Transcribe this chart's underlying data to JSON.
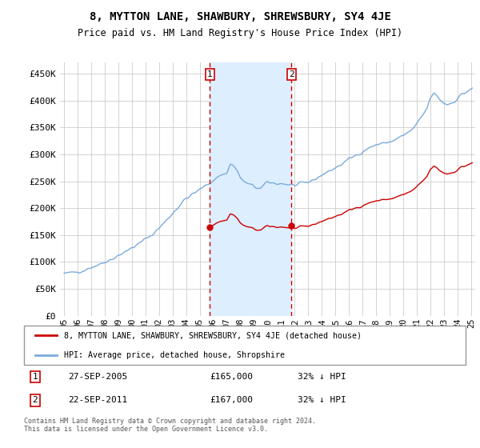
{
  "title": "8, MYTTON LANE, SHAWBURY, SHREWSBURY, SY4 4JE",
  "subtitle": "Price paid vs. HM Land Registry's House Price Index (HPI)",
  "legend_line1": "8, MYTTON LANE, SHAWBURY, SHREWSBURY, SY4 4JE (detached house)",
  "legend_line2": "HPI: Average price, detached house, Shropshire",
  "purchase1_date": "27-SEP-2005",
  "purchase1_price": 165000,
  "purchase1_label": "32% ↓ HPI",
  "purchase2_date": "22-SEP-2011",
  "purchase2_price": 167000,
  "purchase2_label": "32% ↓ HPI",
  "footer": "Contains HM Land Registry data © Crown copyright and database right 2024.\nThis data is licensed under the Open Government Licence v3.0.",
  "hpi_color": "#7aabdb",
  "property_color": "#cc0000",
  "marker_color": "#cc0000",
  "vline_color": "#cc0000",
  "shade_color": "#ddeeff",
  "ylim": [
    0,
    470000
  ],
  "yticks": [
    0,
    50000,
    100000,
    150000,
    200000,
    250000,
    300000,
    350000,
    400000,
    450000
  ],
  "purchase1_x": 2005.75,
  "purchase2_x": 2011.75,
  "xtick_years": [
    1995,
    1996,
    1997,
    1998,
    1999,
    2000,
    2001,
    2002,
    2003,
    2004,
    2005,
    2006,
    2007,
    2008,
    2009,
    2010,
    2011,
    2012,
    2013,
    2014,
    2015,
    2016,
    2017,
    2018,
    2019,
    2020,
    2021,
    2022,
    2023,
    2024,
    2025
  ]
}
